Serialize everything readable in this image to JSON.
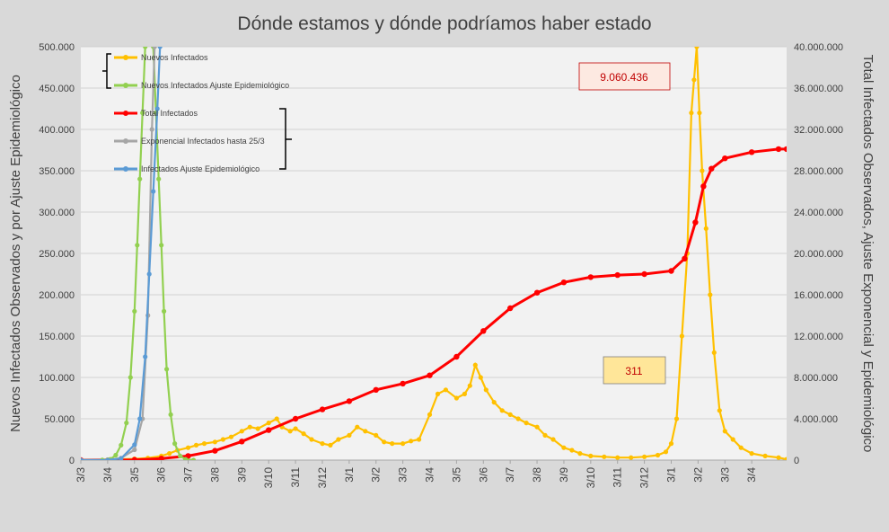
{
  "chart_data": {
    "type": "line",
    "title": "Dónde estamos y dónde podríamos haber estado",
    "ylabel_left": "Nuevos Infectados Observados y por Ajuste Epidemiológico",
    "ylabel_right": "Total Infectados Observados, Ajuste Exponencial y Epidemiológico",
    "ylim_left": [
      0,
      500000
    ],
    "ylim_right": [
      0,
      40000000
    ],
    "yticks_left": [
      "0",
      "50.000",
      "100.000",
      "150.000",
      "200.000",
      "250.000",
      "300.000",
      "350.000",
      "400.000",
      "450.000",
      "500.000"
    ],
    "yticks_right": [
      "0",
      "4.000.000",
      "8.000.000",
      "12.000.000",
      "16.000.000",
      "20.000.000",
      "24.000.000",
      "28.000.000",
      "32.000.000",
      "36.000.000",
      "40.000.000"
    ],
    "x_tick_labels": [
      "3/3",
      "3/4",
      "3/5",
      "3/6",
      "3/7",
      "3/8",
      "3/9",
      "3/10",
      "3/11",
      "3/12",
      "3/1",
      "3/2",
      "3/3",
      "3/4",
      "3/5",
      "3/6",
      "3/7",
      "3/8",
      "3/9",
      "3/10",
      "3/11",
      "3/12",
      "3/1",
      "3/2",
      "3/3",
      "3/4"
    ],
    "x_unit": "months since 3/3 (first tick)",
    "grid": true,
    "legend_left_group": [
      "Nuevos Infectados",
      "Nuevos Infectados Ajuste Epidemiológico"
    ],
    "legend_right_group": [
      "Total Infectados",
      "Exponencial Infectados hasta 25/3",
      "Infectados Ajuste Epidemiológico"
    ],
    "series": [
      {
        "name": "Nuevos Infectados",
        "axis": "left",
        "color": "#ffc000",
        "points": [
          [
            0,
            0
          ],
          [
            1,
            500
          ],
          [
            2,
            1500
          ],
          [
            2.5,
            2500
          ],
          [
            3,
            5000
          ],
          [
            3.3,
            8000
          ],
          [
            3.6,
            12000
          ],
          [
            4,
            15000
          ],
          [
            4.3,
            18000
          ],
          [
            4.6,
            20000
          ],
          [
            5,
            22000
          ],
          [
            5.3,
            25000
          ],
          [
            5.6,
            28000
          ],
          [
            6,
            35000
          ],
          [
            6.3,
            40000
          ],
          [
            6.6,
            38000
          ],
          [
            7,
            45000
          ],
          [
            7.3,
            50000
          ],
          [
            7.5,
            40000
          ],
          [
            7.8,
            35000
          ],
          [
            8,
            38000
          ],
          [
            8.3,
            32000
          ],
          [
            8.6,
            25000
          ],
          [
            9,
            20000
          ],
          [
            9.3,
            18000
          ],
          [
            9.6,
            25000
          ],
          [
            10,
            30000
          ],
          [
            10.3,
            40000
          ],
          [
            10.6,
            35000
          ],
          [
            11,
            30000
          ],
          [
            11.3,
            22000
          ],
          [
            11.6,
            20000
          ],
          [
            12,
            20000
          ],
          [
            12.3,
            23000
          ],
          [
            12.6,
            25000
          ],
          [
            13,
            55000
          ],
          [
            13.3,
            80000
          ],
          [
            13.6,
            85000
          ],
          [
            14,
            75000
          ],
          [
            14.3,
            80000
          ],
          [
            14.5,
            90000
          ],
          [
            14.7,
            115000
          ],
          [
            14.9,
            100000
          ],
          [
            15.1,
            85000
          ],
          [
            15.4,
            70000
          ],
          [
            15.7,
            60000
          ],
          [
            16,
            55000
          ],
          [
            16.3,
            50000
          ],
          [
            16.6,
            45000
          ],
          [
            17,
            40000
          ],
          [
            17.3,
            30000
          ],
          [
            17.6,
            25000
          ],
          [
            18,
            15000
          ],
          [
            18.3,
            12000
          ],
          [
            18.6,
            8000
          ],
          [
            19,
            5000
          ],
          [
            19.5,
            4000
          ],
          [
            20,
            3000
          ],
          [
            20.5,
            3000
          ],
          [
            21,
            4000
          ],
          [
            21.5,
            6000
          ],
          [
            21.8,
            10000
          ],
          [
            22,
            20000
          ],
          [
            22.2,
            50000
          ],
          [
            22.4,
            150000
          ],
          [
            22.6,
            250000
          ],
          [
            22.75,
            420000
          ],
          [
            22.85,
            460000
          ],
          [
            22.95,
            500000
          ],
          [
            23.05,
            420000
          ],
          [
            23.15,
            350000
          ],
          [
            23.3,
            280000
          ],
          [
            23.45,
            200000
          ],
          [
            23.6,
            130000
          ],
          [
            23.8,
            60000
          ],
          [
            24,
            35000
          ],
          [
            24.3,
            25000
          ],
          [
            24.6,
            15000
          ],
          [
            25,
            8000
          ],
          [
            25.5,
            5000
          ],
          [
            26,
            3000
          ],
          [
            26.3,
            1000
          ]
        ]
      },
      {
        "name": "Nuevos Infectados Ajuste Epidemiológico",
        "axis": "left",
        "color": "#92d050",
        "points": [
          [
            0,
            0
          ],
          [
            0.8,
            100
          ],
          [
            1.1,
            1000
          ],
          [
            1.3,
            6000
          ],
          [
            1.5,
            18000
          ],
          [
            1.7,
            45000
          ],
          [
            1.85,
            100000
          ],
          [
            2,
            180000
          ],
          [
            2.1,
            260000
          ],
          [
            2.2,
            340000
          ],
          [
            2.3,
            420000
          ],
          [
            2.4,
            500000
          ],
          [
            2.55,
            530000
          ],
          [
            2.7,
            500000
          ],
          [
            2.8,
            420000
          ],
          [
            2.9,
            340000
          ],
          [
            3,
            260000
          ],
          [
            3.1,
            180000
          ],
          [
            3.2,
            110000
          ],
          [
            3.35,
            55000
          ],
          [
            3.5,
            20000
          ],
          [
            3.7,
            5000
          ],
          [
            3.9,
            1000
          ],
          [
            4.2,
            0
          ]
        ]
      },
      {
        "name": "Total Infectados",
        "axis": "right",
        "color": "#ff0000",
        "points": [
          [
            0,
            0
          ],
          [
            2,
            30000
          ],
          [
            3,
            150000
          ],
          [
            4,
            400000
          ],
          [
            5,
            900000
          ],
          [
            6,
            1800000
          ],
          [
            7,
            2900000
          ],
          [
            8,
            4000000
          ],
          [
            9,
            4900000
          ],
          [
            10,
            5700000
          ],
          [
            11,
            6800000
          ],
          [
            12,
            7400000
          ],
          [
            13,
            8200000
          ],
          [
            14,
            10000000
          ],
          [
            15,
            12500000
          ],
          [
            16,
            14700000
          ],
          [
            17,
            16200000
          ],
          [
            18,
            17200000
          ],
          [
            19,
            17700000
          ],
          [
            20,
            17900000
          ],
          [
            21,
            18000000
          ],
          [
            22,
            18300000
          ],
          [
            22.5,
            19500000
          ],
          [
            22.9,
            23000000
          ],
          [
            23.2,
            26500000
          ],
          [
            23.5,
            28200000
          ],
          [
            24,
            29200000
          ],
          [
            25,
            29800000
          ],
          [
            26,
            30100000
          ],
          [
            26.3,
            30100000
          ]
        ]
      },
      {
        "name": "Exponencial Infectados hasta 25/3",
        "axis": "right",
        "color": "#a6a6a6",
        "points": [
          [
            0,
            0
          ],
          [
            1,
            20000
          ],
          [
            1.5,
            200000
          ],
          [
            2,
            1000000
          ],
          [
            2.3,
            4000000
          ],
          [
            2.5,
            14000000
          ],
          [
            2.65,
            32000000
          ],
          [
            2.75,
            40000000
          ]
        ]
      },
      {
        "name": "Infectados Ajuste Epidemiológico",
        "axis": "right",
        "color": "#5b9bd5",
        "points": [
          [
            0,
            0
          ],
          [
            1,
            10000
          ],
          [
            1.5,
            150000
          ],
          [
            2,
            1500000
          ],
          [
            2.2,
            4000000
          ],
          [
            2.4,
            10000000
          ],
          [
            2.55,
            18000000
          ],
          [
            2.7,
            26000000
          ],
          [
            2.85,
            34000000
          ],
          [
            2.95,
            40000000
          ]
        ]
      }
    ],
    "annotations": [
      "9.060.436",
      "311"
    ]
  }
}
